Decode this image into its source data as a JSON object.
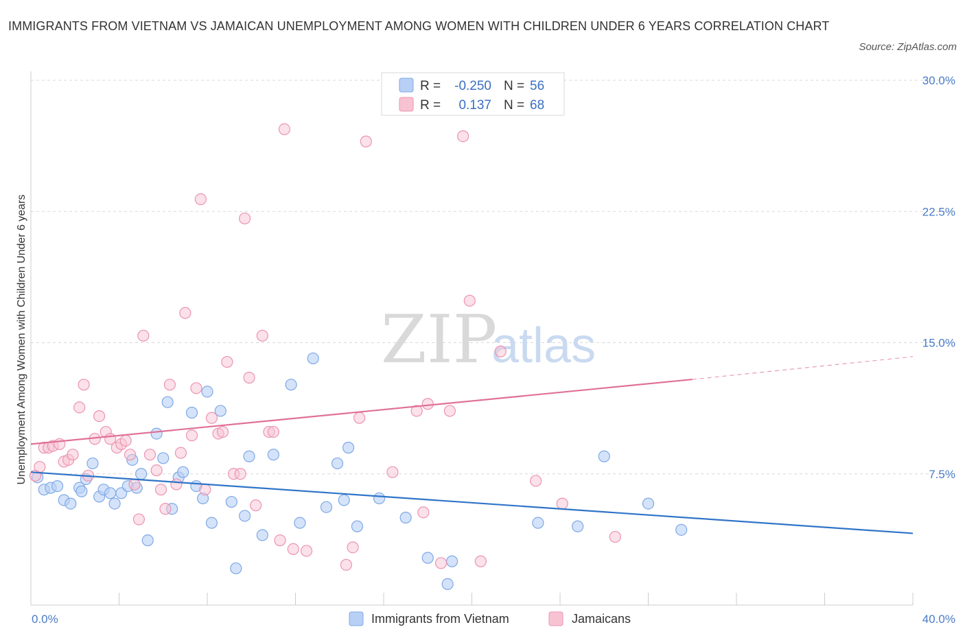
{
  "title": "IMMIGRANTS FROM VIETNAM VS JAMAICAN UNEMPLOYMENT AMONG WOMEN WITH CHILDREN UNDER 6 YEARS CORRELATION CHART",
  "source": "Source: ZipAtlas.com",
  "watermark": {
    "zip": "ZIP",
    "atlas": "atlas"
  },
  "colors": {
    "blue_fill": "#b8d0f5",
    "blue_stroke": "#7fa8e6",
    "blue_line": "#2f74c8",
    "pink_fill": "#f7c3d3",
    "pink_stroke": "#ec93b0",
    "pink_line": "#e07098",
    "tick_text": "#4a7cc7",
    "grid": "#d8d8d8"
  },
  "legend": {
    "rows": [
      {
        "r_label": "R = ",
        "r_value": "-0.250",
        "n_label": "N = ",
        "n_value": "56"
      },
      {
        "r_label": "R = ",
        "r_value": "0.137",
        "n_label": "N = ",
        "n_value": "68"
      }
    ]
  },
  "bottom_legend": [
    "Immigrants from Vietnam",
    "Jamaicans"
  ],
  "chart_data": {
    "type": "scatter",
    "title": "IMMIGRANTS FROM VIETNAM VS JAMAICAN UNEMPLOYMENT AMONG WOMEN WITH CHILDREN UNDER 6 YEARS CORRELATION CHART",
    "xlabel": "",
    "ylabel": "Unemployment Among Women with Children Under 6 years",
    "xlim": [
      0,
      40
    ],
    "ylim": [
      0,
      30
    ],
    "x_tick_labels": [
      "0.0%",
      "40.0%"
    ],
    "y_ticks": [
      7.5,
      15.0,
      22.5,
      30.0
    ],
    "y_tick_labels": [
      "7.5%",
      "15.0%",
      "22.5%",
      "30.0%"
    ],
    "grid": true,
    "legend_position": "top-center",
    "series": [
      {
        "name": "Immigrants from Vietnam",
        "r": -0.25,
        "n": 56,
        "trend": {
          "x": [
            0,
            40
          ],
          "y": [
            7.6,
            4.1
          ]
        },
        "points": [
          [
            0.3,
            7.3
          ],
          [
            0.6,
            6.6
          ],
          [
            0.9,
            6.7
          ],
          [
            1.2,
            6.8
          ],
          [
            1.5,
            6.0
          ],
          [
            1.8,
            5.8
          ],
          [
            2.2,
            6.7
          ],
          [
            2.3,
            6.5
          ],
          [
            2.5,
            7.2
          ],
          [
            2.8,
            8.1
          ],
          [
            3.1,
            6.2
          ],
          [
            3.3,
            6.6
          ],
          [
            3.6,
            6.4
          ],
          [
            3.8,
            5.8
          ],
          [
            4.1,
            6.4
          ],
          [
            4.4,
            6.8
          ],
          [
            4.6,
            8.3
          ],
          [
            4.8,
            6.7
          ],
          [
            5.0,
            7.5
          ],
          [
            5.3,
            3.7
          ],
          [
            5.7,
            9.8
          ],
          [
            6.0,
            8.4
          ],
          [
            6.2,
            11.6
          ],
          [
            6.4,
            5.5
          ],
          [
            6.7,
            7.3
          ],
          [
            6.9,
            7.6
          ],
          [
            7.3,
            11.0
          ],
          [
            7.5,
            6.8
          ],
          [
            7.8,
            6.1
          ],
          [
            8.0,
            12.2
          ],
          [
            8.2,
            4.7
          ],
          [
            8.6,
            11.1
          ],
          [
            9.1,
            5.9
          ],
          [
            9.3,
            2.1
          ],
          [
            9.7,
            5.1
          ],
          [
            9.9,
            8.5
          ],
          [
            10.5,
            4.0
          ],
          [
            11.0,
            8.6
          ],
          [
            11.8,
            12.6
          ],
          [
            12.2,
            4.7
          ],
          [
            12.8,
            14.1
          ],
          [
            13.4,
            5.6
          ],
          [
            13.9,
            8.1
          ],
          [
            14.2,
            6.0
          ],
          [
            14.4,
            9.0
          ],
          [
            14.8,
            4.5
          ],
          [
            15.8,
            6.1
          ],
          [
            17.0,
            5.0
          ],
          [
            18.0,
            2.7
          ],
          [
            18.9,
            1.2
          ],
          [
            19.1,
            2.5
          ],
          [
            23.0,
            4.7
          ],
          [
            24.8,
            4.5
          ],
          [
            26.0,
            8.5
          ],
          [
            28.0,
            5.8
          ],
          [
            29.5,
            4.3
          ]
        ]
      },
      {
        "name": "Jamaicans",
        "r": 0.137,
        "n": 68,
        "trend": {
          "x": [
            0,
            30
          ],
          "y": [
            9.2,
            12.9
          ]
        },
        "trend_extension": {
          "x": [
            30,
            40
          ],
          "y": [
            12.9,
            14.2
          ]
        },
        "points": [
          [
            0.2,
            7.4
          ],
          [
            0.4,
            7.9
          ],
          [
            0.6,
            9.0
          ],
          [
            0.8,
            9.0
          ],
          [
            1.0,
            9.1
          ],
          [
            1.3,
            9.2
          ],
          [
            1.5,
            8.2
          ],
          [
            1.7,
            8.3
          ],
          [
            1.9,
            8.6
          ],
          [
            2.2,
            11.3
          ],
          [
            2.4,
            12.6
          ],
          [
            2.6,
            7.4
          ],
          [
            2.9,
            9.5
          ],
          [
            3.1,
            10.8
          ],
          [
            3.4,
            9.9
          ],
          [
            3.6,
            9.5
          ],
          [
            3.9,
            9.0
          ],
          [
            4.1,
            9.2
          ],
          [
            4.3,
            9.4
          ],
          [
            4.5,
            8.6
          ],
          [
            4.7,
            6.9
          ],
          [
            4.9,
            4.9
          ],
          [
            5.1,
            15.4
          ],
          [
            5.4,
            8.6
          ],
          [
            5.7,
            7.7
          ],
          [
            5.9,
            6.6
          ],
          [
            6.1,
            5.5
          ],
          [
            6.3,
            12.6
          ],
          [
            6.6,
            6.9
          ],
          [
            6.8,
            8.7
          ],
          [
            7.0,
            16.7
          ],
          [
            7.3,
            9.7
          ],
          [
            7.5,
            12.4
          ],
          [
            7.7,
            23.2
          ],
          [
            7.9,
            6.6
          ],
          [
            8.2,
            10.7
          ],
          [
            8.5,
            9.8
          ],
          [
            8.7,
            9.9
          ],
          [
            8.9,
            13.9
          ],
          [
            9.2,
            7.5
          ],
          [
            9.5,
            7.5
          ],
          [
            9.7,
            22.1
          ],
          [
            9.9,
            13.0
          ],
          [
            10.2,
            5.7
          ],
          [
            10.5,
            15.4
          ],
          [
            10.8,
            9.9
          ],
          [
            11.0,
            9.9
          ],
          [
            11.3,
            3.7
          ],
          [
            11.5,
            27.2
          ],
          [
            11.9,
            3.2
          ],
          [
            12.5,
            3.1
          ],
          [
            14.3,
            2.3
          ],
          [
            14.6,
            3.3
          ],
          [
            14.9,
            10.7
          ],
          [
            15.2,
            26.5
          ],
          [
            16.4,
            7.6
          ],
          [
            17.5,
            11.1
          ],
          [
            17.8,
            5.3
          ],
          [
            18.0,
            11.5
          ],
          [
            18.6,
            2.4
          ],
          [
            19.0,
            11.1
          ],
          [
            19.6,
            26.8
          ],
          [
            19.9,
            17.4
          ],
          [
            20.4,
            2.5
          ],
          [
            21.3,
            14.5
          ],
          [
            22.9,
            7.1
          ],
          [
            24.1,
            5.8
          ],
          [
            26.5,
            3.9
          ]
        ]
      }
    ]
  }
}
